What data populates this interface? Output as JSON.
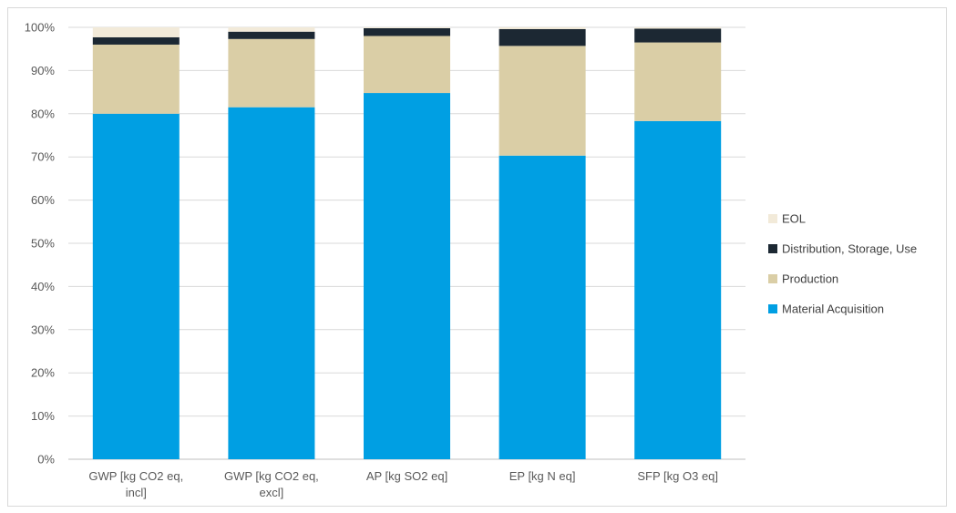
{
  "chart_data": {
    "type": "bar",
    "stacked": true,
    "percent": true,
    "categories": [
      [
        "GWP [kg CO2 eq,",
        "incl]"
      ],
      [
        "GWP [kg CO2 eq,",
        "excl]"
      ],
      [
        "AP [kg SO2 eq]"
      ],
      [
        "EP [kg N eq]"
      ],
      [
        "SFP [kg O3 eq]"
      ]
    ],
    "series": [
      {
        "name": "Material Acquisition",
        "color": "#009fe3",
        "values": [
          80.0,
          81.5,
          84.8,
          70.3,
          78.3
        ]
      },
      {
        "name": "Production",
        "color": "#dacea6",
        "values": [
          16.0,
          15.8,
          13.2,
          25.4,
          18.2
        ]
      },
      {
        "name": "Distribution, Storage, Use",
        "color": "#1c2833",
        "values": [
          1.7,
          1.7,
          1.8,
          3.9,
          3.2
        ]
      },
      {
        "name": "EOL",
        "color": "#f2ead9",
        "values": [
          2.3,
          1.0,
          0.2,
          0.4,
          0.3
        ]
      }
    ],
    "ylim": [
      0,
      100
    ],
    "yticks": [
      "0%",
      "10%",
      "20%",
      "30%",
      "40%",
      "50%",
      "60%",
      "70%",
      "80%",
      "90%",
      "100%"
    ],
    "legend_position": "right",
    "legend_order": [
      "EOL",
      "Distribution, Storage, Use",
      "Production",
      "Material Acquisition"
    ],
    "grid": true
  }
}
